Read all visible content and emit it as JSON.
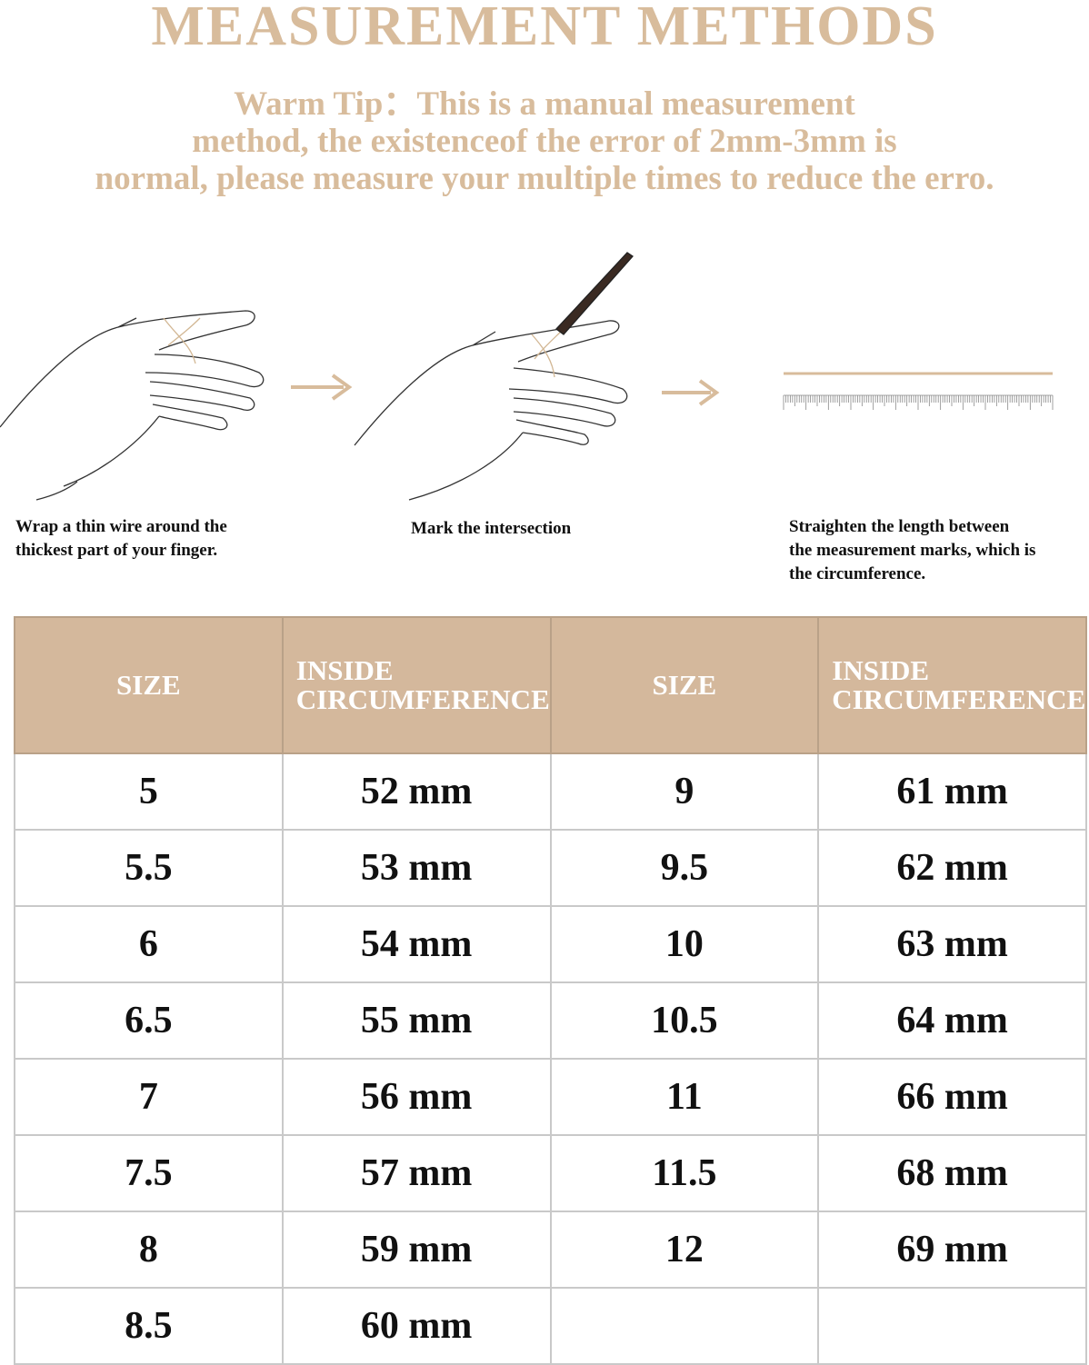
{
  "header": {
    "title": "MEASUREMENT METHODS",
    "tip": [
      "Warm Tip：This is a manual measurement",
      "method, the existenceof the error of 2mm-3mm is",
      "normal, please measure your multiple times to reduce the erro."
    ]
  },
  "steps": [
    {
      "lines": [
        "Wrap a thin wire around the",
        "thickest part of your finger."
      ]
    },
    {
      "lines": [
        "Mark the intersection"
      ]
    },
    {
      "lines": [
        "Straighten the length between",
        "the measurement marks, which is",
        "the circumference."
      ]
    }
  ],
  "table": {
    "header": [
      "SIZE",
      "INSIDE CIRCUMFERENCE",
      "SIZE",
      "INSIDE CIRCUMFERENCE"
    ],
    "rows": [
      [
        5,
        "52 mm",
        9,
        "61 mm"
      ],
      [
        5.5,
        "53 mm",
        9.5,
        "62 mm"
      ],
      [
        6,
        "54 mm",
        10,
        "63 mm"
      ],
      [
        6.5,
        "55 mm",
        10.5,
        "64 mm"
      ],
      [
        7,
        "56 mm",
        11,
        "66 mm"
      ],
      [
        7.5,
        "57 mm",
        11.5,
        "68 mm"
      ],
      [
        8,
        "59 mm",
        12,
        "69 mm"
      ],
      [
        8.5,
        "60 mm"
      ]
    ]
  }
}
